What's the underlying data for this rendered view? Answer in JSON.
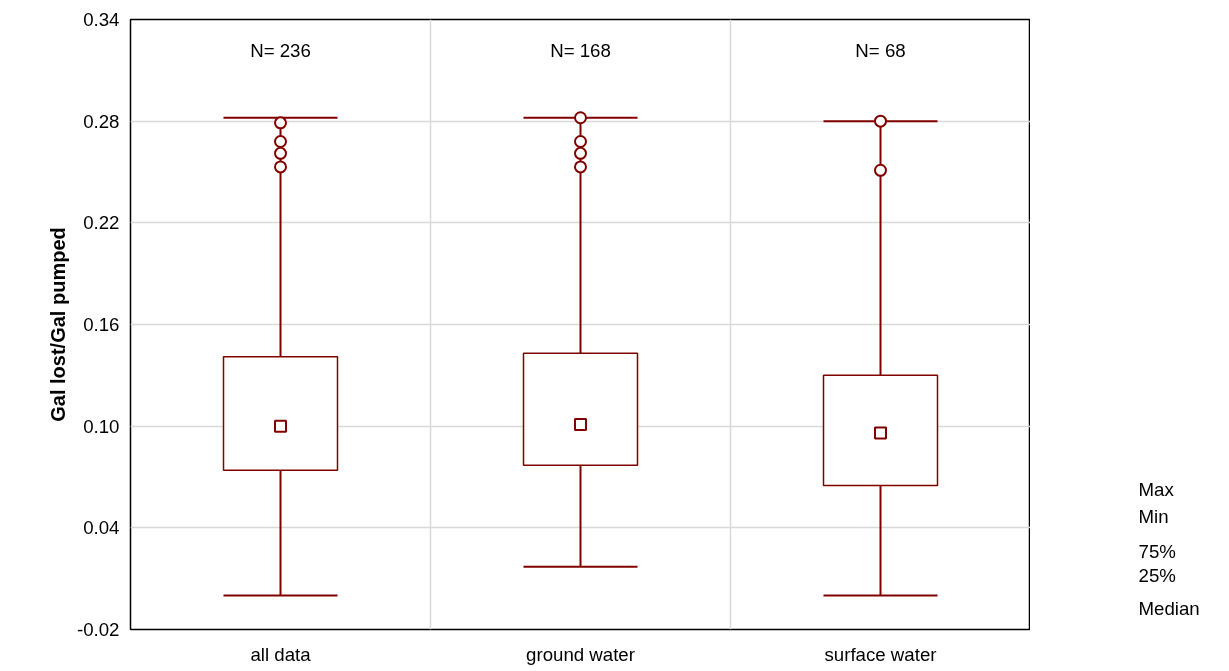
{
  "chart_data": {
    "type": "box",
    "ylabel": "Gal lost/Gal pumped",
    "categories": [
      "all data",
      "ground water",
      "surface water"
    ],
    "series": [
      {
        "color": "#800000",
        "boxes": [
          {
            "low": 0.0,
            "q1": 0.074,
            "median": 0.1,
            "q3": 0.141,
            "high": 0.282,
            "outliers": [
              0.279,
              0.268,
              0.261,
              0.253
            ]
          },
          {
            "low": 0.017,
            "q1": 0.077,
            "median": 0.101,
            "q3": 0.143,
            "high": 0.282,
            "outliers": [
              0.282,
              0.268,
              0.261,
              0.253
            ]
          },
          {
            "low": 0.0,
            "q1": 0.065,
            "median": 0.096,
            "q3": 0.13,
            "high": 0.28,
            "outliers": [
              0.28,
              0.251
            ]
          }
        ]
      }
    ],
    "ylim": [
      -0.02,
      0.34
    ],
    "yticks": [
      -0.02,
      0.04,
      {
        "value": 0.1,
        "label": "0.10"
      },
      0.16,
      0.22,
      0.28,
      0.34
    ],
    "grid": true,
    "annotations": [
      "N= 236",
      "N= 168",
      "N= 68",
      "Max",
      "Min",
      "75%",
      "25%",
      "Median"
    ]
  }
}
